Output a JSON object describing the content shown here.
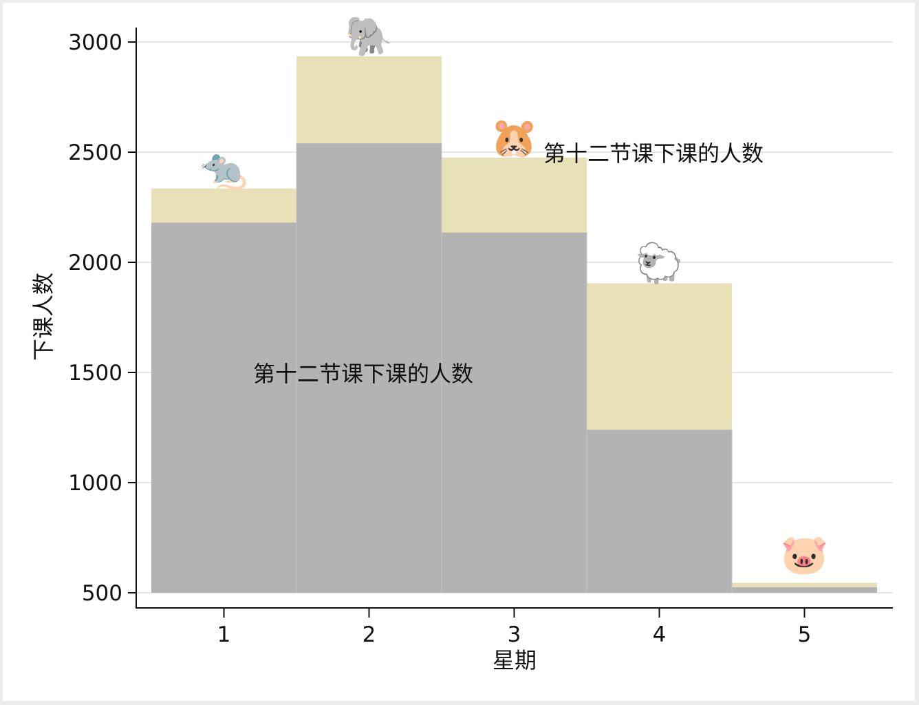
{
  "chart_data": {
    "type": "bar",
    "xlabel": "星期",
    "ylabel": "下课人数",
    "categories": [
      "1",
      "2",
      "3",
      "4",
      "5"
    ],
    "series": [
      {
        "values": [
          2180,
          2540,
          2135,
          1240,
          525
        ],
        "color": "#b3b3b3"
      },
      {
        "values": [
          2335,
          2935,
          2475,
          1905,
          545
        ],
        "color": "#e8e0b6"
      }
    ],
    "ylim": [
      500,
      3000
    ],
    "yticks": [
      "500",
      "1000",
      "1500",
      "2000",
      "2500",
      "3000"
    ],
    "grid": true,
    "icons": [
      {
        "category": "1",
        "name": "rat-icon",
        "glyph": "🐀"
      },
      {
        "category": "2",
        "name": "elephant-icon",
        "glyph": "🐘"
      },
      {
        "category": "3",
        "name": "hamster-icon",
        "glyph": "🐹"
      },
      {
        "category": "4",
        "name": "sheep-icon",
        "glyph": "🐑"
      },
      {
        "category": "5",
        "name": "pig-icon",
        "glyph": "🐷"
      }
    ],
    "annotations": [
      "第十二节课下课的人数",
      "第十二节课下课的人数"
    ]
  }
}
